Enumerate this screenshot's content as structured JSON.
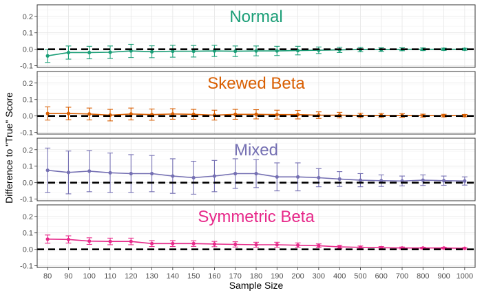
{
  "chart_data": {
    "type": "line",
    "xlabel": "Sample Size",
    "ylabel": "Difference to \"True\" Score",
    "categories": [
      "80",
      "90",
      "100",
      "110",
      "120",
      "130",
      "140",
      "150",
      "160",
      "170",
      "180",
      "190",
      "200",
      "300",
      "400",
      "500",
      "600",
      "700",
      "800",
      "900",
      "1000"
    ],
    "ylim": [
      -0.11,
      0.27
    ],
    "yticks": [
      -0.1,
      0.0,
      0.1,
      0.2
    ],
    "ytick_labels": [
      "-0.1",
      "0.0",
      "0.1",
      "0.2"
    ],
    "reference_line": 0,
    "grid": true,
    "panels": [
      {
        "title": "Normal",
        "color": "#1b9e77",
        "values": [
          -0.04,
          -0.02,
          -0.02,
          -0.018,
          -0.01,
          -0.015,
          -0.012,
          -0.012,
          -0.01,
          -0.012,
          -0.01,
          -0.01,
          -0.008,
          -0.006,
          -0.004,
          -0.002,
          -0.002,
          0.0,
          0.0,
          0.0,
          0.0
        ],
        "error": [
          0.04,
          0.04,
          0.038,
          0.038,
          0.04,
          0.036,
          0.036,
          0.035,
          0.034,
          0.032,
          0.03,
          0.028,
          0.026,
          0.02,
          0.016,
          0.013,
          0.011,
          0.009,
          0.008,
          0.007,
          0.006
        ]
      },
      {
        "title": "Skewed Beta",
        "color": "#d95f02",
        "values": [
          0.015,
          0.015,
          0.012,
          0.005,
          0.012,
          0.008,
          0.012,
          0.01,
          0.005,
          0.01,
          0.01,
          0.008,
          0.008,
          0.005,
          0.005,
          0.003,
          0.003,
          0.003,
          0.002,
          0.002,
          0.002
        ],
        "error": [
          0.04,
          0.038,
          0.036,
          0.035,
          0.036,
          0.034,
          0.032,
          0.03,
          0.03,
          0.03,
          0.028,
          0.027,
          0.026,
          0.02,
          0.017,
          0.014,
          0.012,
          0.011,
          0.009,
          0.008,
          0.007
        ]
      },
      {
        "title": "Mixed",
        "color": "#7570b3",
        "values": [
          0.075,
          0.062,
          0.07,
          0.06,
          0.055,
          0.055,
          0.04,
          0.03,
          0.04,
          0.055,
          0.055,
          0.035,
          0.035,
          0.03,
          0.022,
          0.015,
          0.012,
          0.01,
          0.015,
          0.012,
          0.01
        ],
        "error": [
          0.135,
          0.13,
          0.125,
          0.12,
          0.115,
          0.11,
          0.105,
          0.1,
          0.095,
          0.09,
          0.085,
          0.085,
          0.085,
          0.055,
          0.045,
          0.04,
          0.035,
          0.03,
          0.032,
          0.028,
          0.025
        ]
      },
      {
        "title": "Symmetric Beta",
        "color": "#e7298a",
        "values": [
          0.062,
          0.06,
          0.05,
          0.048,
          0.048,
          0.035,
          0.035,
          0.035,
          0.032,
          0.03,
          0.028,
          0.028,
          0.025,
          0.022,
          0.015,
          0.012,
          0.01,
          0.008,
          0.008,
          0.008,
          0.006
        ],
        "error": [
          0.025,
          0.022,
          0.02,
          0.02,
          0.02,
          0.018,
          0.018,
          0.017,
          0.016,
          0.016,
          0.015,
          0.015,
          0.014,
          0.011,
          0.009,
          0.008,
          0.007,
          0.006,
          0.005,
          0.005,
          0.004
        ]
      }
    ]
  }
}
